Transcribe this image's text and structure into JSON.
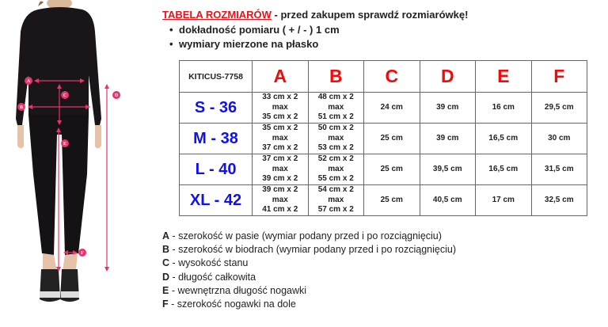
{
  "header": {
    "title_red": "TABELA ROZMIARÓW",
    "title_rest": " - przed zakupem sprawdź rozmiarówkę!",
    "bullets": [
      "dokładność pomiaru ( + / - ) 1 cm",
      "wymiary mierzone na płasko"
    ]
  },
  "figure": {
    "markers": [
      "A",
      "B",
      "C",
      "D",
      "E",
      "F"
    ],
    "accent": "#e8336b"
  },
  "table": {
    "model": "KITICUS-7758",
    "columns": [
      "A",
      "B",
      "C",
      "D",
      "E",
      "F"
    ],
    "rows": [
      {
        "size": "S - 36",
        "a": [
          "33 cm x 2",
          "max",
          "35 cm x 2"
        ],
        "b": [
          "48 cm x 2",
          "max",
          "51 cm x 2"
        ],
        "c": "24 cm",
        "d": "39 cm",
        "e": "16 cm",
        "f": "29,5 cm"
      },
      {
        "size": "M - 38",
        "a": [
          "35 cm x 2",
          "max",
          "37 cm x 2"
        ],
        "b": [
          "50 cm x 2",
          "max",
          "53 cm x 2"
        ],
        "c": "25 cm",
        "d": "39 cm",
        "e": "16,5 cm",
        "f": "30 cm"
      },
      {
        "size": "L - 40",
        "a": [
          "37 cm x 2",
          "max",
          "39 cm x 2"
        ],
        "b": [
          "52 cm x 2",
          "max",
          "55 cm x 2"
        ],
        "c": "25 cm",
        "d": "39,5 cm",
        "e": "16,5 cm",
        "f": "31,5 cm"
      },
      {
        "size": "XL - 42",
        "a": [
          "39 cm x 2",
          "max",
          "41 cm x 2"
        ],
        "b": [
          "54 cm x 2",
          "max",
          "57 cm x 2"
        ],
        "c": "25 cm",
        "d": "40,5 cm",
        "e": "17 cm",
        "f": "32,5 cm"
      }
    ]
  },
  "legend": [
    {
      "key": "A",
      "text": " - szerokość w pasie (wymiar podany przed i po rozciągnięciu)"
    },
    {
      "key": "B",
      "text": " - szerokość w biodrach (wymiar podany przed i po rozciągnięciu)"
    },
    {
      "key": "C",
      "text": " - wysokość stanu"
    },
    {
      "key": "D",
      "text": " - długość całkowita"
    },
    {
      "key": "E",
      "text": " - wewnętrzna długość nogawki"
    },
    {
      "key": "F",
      "text": " - szerokość nogawki na dole"
    }
  ],
  "colors": {
    "title_red": "#e8141b",
    "column_red": "#f50a0a",
    "size_blue": "#1010f0"
  }
}
